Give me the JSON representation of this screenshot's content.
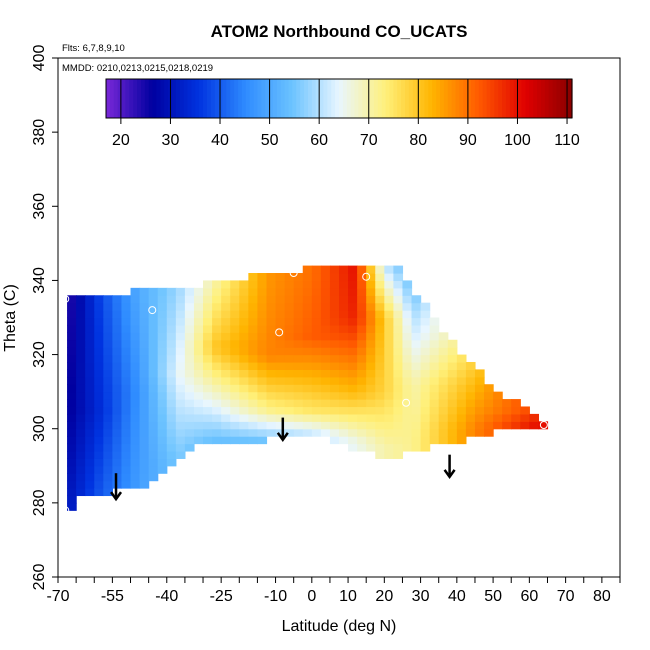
{
  "chart_data": {
    "type": "heatmap",
    "title": "ATOM2 Northbound CO_UCATS",
    "flights_note": "Flts: 6,7,8,9,10",
    "dates_note": "MMDD: 0210,0213,0215,0218,0219",
    "xlabel": "Latitude (deg N)",
    "ylabel": "Theta (C)",
    "xlim": [
      -70,
      85
    ],
    "ylim": [
      260,
      400
    ],
    "x_ticks": [
      -70,
      -55,
      -40,
      -25,
      -10,
      0,
      10,
      20,
      30,
      40,
      50,
      60,
      70,
      80
    ],
    "y_ticks": [
      260,
      280,
      300,
      320,
      340,
      360,
      380,
      400
    ],
    "colorbar": {
      "range": [
        17,
        111
      ],
      "ticks": [
        20,
        30,
        40,
        50,
        60,
        70,
        80,
        90,
        100,
        110
      ],
      "colors": [
        "#7a28d8",
        "#0000a0",
        "#0033e0",
        "#2f8cff",
        "#6cc3ff",
        "#e8f6ff",
        "#fff07a",
        "#ffb400",
        "#ff5a00",
        "#e00000",
        "#8a0000"
      ],
      "placement": "top inset"
    },
    "field_knots": [
      {
        "x": -68,
        "values": [
          {
            "y": 278,
            "v": 30
          },
          {
            "y": 305,
            "v": 25
          },
          {
            "y": 336,
            "v": 22
          }
        ]
      },
      {
        "x": -58,
        "values": [
          {
            "y": 282,
            "v": 40
          },
          {
            "y": 305,
            "v": 35
          },
          {
            "y": 336,
            "v": 38
          }
        ]
      },
      {
        "x": -48,
        "values": [
          {
            "y": 284,
            "v": 48
          },
          {
            "y": 310,
            "v": 46
          },
          {
            "y": 336,
            "v": 50
          }
        ]
      },
      {
        "x": -37,
        "values": [
          {
            "y": 290,
            "v": 55
          },
          {
            "y": 315,
            "v": 64
          },
          {
            "y": 338,
            "v": 58
          }
        ]
      },
      {
        "x": -27,
        "values": [
          {
            "y": 295,
            "v": 52
          },
          {
            "y": 310,
            "v": 68
          },
          {
            "y": 322,
            "v": 80
          },
          {
            "y": 340,
            "v": 70
          }
        ]
      },
      {
        "x": -12,
        "values": [
          {
            "y": 297,
            "v": 55
          },
          {
            "y": 305,
            "v": 72
          },
          {
            "y": 320,
            "v": 88
          },
          {
            "y": 340,
            "v": 86
          }
        ]
      },
      {
        "x": 0,
        "values": [
          {
            "y": 298,
            "v": 60
          },
          {
            "y": 305,
            "v": 75
          },
          {
            "y": 325,
            "v": 92
          },
          {
            "y": 342,
            "v": 90
          }
        ]
      },
      {
        "x": 12,
        "values": [
          {
            "y": 296,
            "v": 65
          },
          {
            "y": 310,
            "v": 82
          },
          {
            "y": 330,
            "v": 98
          },
          {
            "y": 344,
            "v": 100
          }
        ]
      },
      {
        "x": 20,
        "values": [
          {
            "y": 295,
            "v": 70
          },
          {
            "y": 310,
            "v": 78
          },
          {
            "y": 330,
            "v": 80
          },
          {
            "y": 345,
            "v": 60
          }
        ]
      },
      {
        "x": 28,
        "values": [
          {
            "y": 298,
            "v": 72
          },
          {
            "y": 312,
            "v": 70
          },
          {
            "y": 330,
            "v": 60
          },
          {
            "y": 344,
            "v": 50
          }
        ]
      },
      {
        "x": 45,
        "values": [
          {
            "y": 300,
            "v": 88
          },
          {
            "y": 312,
            "v": 82
          },
          {
            "y": 325,
            "v": 74
          }
        ]
      },
      {
        "x": 62,
        "values": [
          {
            "y": 301,
            "v": 100
          },
          {
            "y": 305,
            "v": 95
          }
        ]
      }
    ],
    "outline": [
      [
        -68,
        276
      ],
      [
        -64,
        282
      ],
      [
        -56,
        283
      ],
      [
        -46,
        285
      ],
      [
        -33,
        295
      ],
      [
        -23,
        296
      ],
      [
        -3,
        298
      ],
      [
        5,
        297
      ],
      [
        13,
        294
      ],
      [
        20,
        292
      ],
      [
        38,
        296
      ],
      [
        55,
        300
      ],
      [
        65,
        301
      ],
      [
        48,
        313
      ],
      [
        37,
        326
      ],
      [
        29,
        336
      ],
      [
        26,
        340
      ],
      [
        24,
        344
      ],
      [
        15,
        345
      ],
      [
        2,
        344
      ],
      [
        -7,
        342
      ],
      [
        -18,
        341
      ],
      [
        -30,
        339
      ],
      [
        -45,
        338
      ],
      [
        -55,
        336
      ],
      [
        -68,
        336
      ]
    ],
    "markers": [
      {
        "x": -68,
        "y": 335
      },
      {
        "x": -44,
        "y": 332
      },
      {
        "x": -9,
        "y": 326
      },
      {
        "x": 15,
        "y": 341
      },
      {
        "x": -5,
        "y": 342
      },
      {
        "x": 26,
        "y": 307
      },
      {
        "x": 64,
        "y": 301
      },
      {
        "x": -68,
        "y": 278
      }
    ],
    "arrows": [
      {
        "x": -54,
        "y_top": 288,
        "y_bottom": 281
      },
      {
        "x": -8,
        "y_top": 303,
        "y_bottom": 297
      },
      {
        "x": 38,
        "y_top": 293,
        "y_bottom": 287
      }
    ]
  }
}
